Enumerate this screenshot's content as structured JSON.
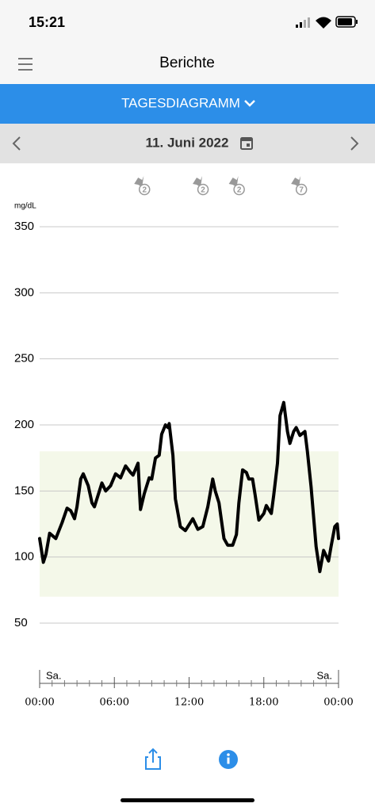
{
  "status_bar": {
    "time": "15:21"
  },
  "header": {
    "title": "Berichte"
  },
  "tab": {
    "label": "TAGESDIAGRAMM"
  },
  "date_bar": {
    "date": "11. Juni 2022"
  },
  "chart_data": {
    "type": "line",
    "y_label": "mg/dL",
    "x": [
      0,
      0.3,
      0.5,
      0.8,
      1.3,
      1.8,
      2.2,
      2.5,
      2.8,
      3.0,
      3.3,
      3.5,
      3.9,
      4.2,
      4.4,
      4.7,
      5.0,
      5.3,
      5.7,
      6.1,
      6.5,
      6.9,
      7.3,
      7.5,
      7.9,
      8.1,
      8.4,
      8.8,
      9.0,
      9.3,
      9.6,
      9.8,
      10.1,
      10.3,
      10.4,
      10.7,
      10.9,
      11.3,
      11.7,
      12.1,
      12.3,
      12.7,
      13.1,
      13.5,
      13.9,
      14.1,
      14.4,
      14.8,
      15.1,
      15.5,
      15.8,
      16.0,
      16.3,
      16.6,
      16.8,
      17.1,
      17.3,
      17.6,
      18.0,
      18.2,
      18.6,
      18.8,
      19.1,
      19.3,
      19.6,
      19.9,
      20.1,
      20.4,
      20.6,
      20.9,
      21.3,
      21.5,
      21.8,
      22.2,
      22.5,
      22.8,
      23.2,
      23.4,
      23.7,
      23.9,
      24
    ],
    "series": [
      {
        "color": "#000000",
        "values": [
          114,
          96,
          102,
          118,
          114,
          126,
          137,
          135,
          129,
          138,
          159,
          163,
          154,
          141,
          138,
          147,
          156,
          150,
          154,
          163,
          160,
          169,
          164,
          162,
          171,
          136,
          148,
          160,
          159,
          175,
          177,
          193,
          200,
          198,
          201,
          177,
          144,
          123,
          120,
          126,
          129,
          121,
          123,
          138,
          159,
          150,
          141,
          114,
          109,
          109,
          117,
          141,
          166,
          164,
          159,
          159,
          147,
          128,
          133,
          139,
          133,
          147,
          171,
          207,
          217,
          195,
          186,
          195,
          198,
          192,
          195,
          180,
          153,
          108,
          89,
          105,
          97,
          108,
          123,
          125,
          114
        ]
      }
    ],
    "xlim": [
      0,
      24
    ],
    "xticks": [
      {
        "value": 0,
        "label": "00:00"
      },
      {
        "value": 6,
        "label": "06:00"
      },
      {
        "value": 12,
        "label": "12:00"
      },
      {
        "value": 18,
        "label": "18:00"
      },
      {
        "value": 24,
        "label": "00:00"
      }
    ],
    "minor_xticks": [
      1,
      2,
      3,
      4,
      5,
      7,
      8,
      9,
      10,
      11,
      13,
      14,
      15,
      16,
      17,
      19,
      20,
      21,
      22,
      23
    ],
    "day_labels": [
      "Sa.",
      "Sa."
    ],
    "ylim": [
      50,
      350
    ],
    "yticks": [
      50,
      100,
      150,
      200,
      250,
      300,
      350
    ],
    "grid": true,
    "target_range": {
      "low": 70,
      "high": 180,
      "color": "#f4f8e9"
    },
    "events": [
      {
        "x": 8.1,
        "count": "2"
      },
      {
        "x": 12.8,
        "count": "2"
      },
      {
        "x": 15.7,
        "count": "2"
      },
      {
        "x": 20.7,
        "count": "7"
      }
    ]
  }
}
